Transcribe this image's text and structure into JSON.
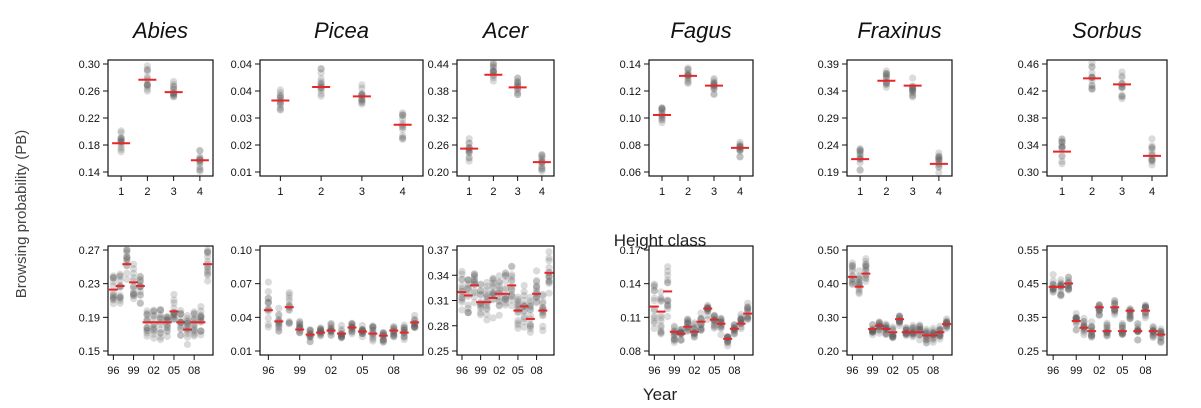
{
  "figure": {
    "ylabel": "Browsing probability (PB)",
    "xlabel_top": "Height class",
    "xlabel_bottom": "Year"
  },
  "colors": {
    "point": "#5a5a5a",
    "median": "#e8262a",
    "frame": "#111111"
  },
  "chart_data": [
    {
      "type": "scatter",
      "row": "height",
      "title": "Abies",
      "x": [
        1,
        2,
        3,
        4
      ],
      "medians": [
        0.183,
        0.276,
        0.258,
        0.158
      ],
      "spread": [
        0.025,
        0.025,
        0.023,
        0.018
      ],
      "yticks": [
        "0.30",
        "0.26",
        "0.22",
        "0.18",
        "0.14"
      ],
      "ylim": [
        0.135,
        0.305
      ],
      "xticks": [
        "1",
        "2",
        "3",
        "4"
      ]
    },
    {
      "type": "scatter",
      "row": "height",
      "title": "Picea",
      "x": [
        1,
        2,
        3,
        4
      ],
      "medians": [
        0.036,
        0.041,
        0.0375,
        0.027
      ],
      "spread": [
        0.007,
        0.007,
        0.006,
        0.006
      ],
      "yticks": [
        "0.04",
        "0.04",
        "0.03",
        "0.02",
        "0.01"
      ],
      "ylim": [
        0.008,
        0.051
      ],
      "xticks": [
        "1",
        "2",
        "3",
        "4"
      ]
    },
    {
      "type": "scatter",
      "row": "height",
      "title": "Acer",
      "x": [
        1,
        2,
        3,
        4
      ],
      "medians": [
        0.26,
        0.435,
        0.405,
        0.228
      ],
      "spread": [
        0.03,
        0.03,
        0.03,
        0.025
      ],
      "yticks": [
        "0.44",
        "0.38",
        "0.32",
        "0.26",
        "0.20"
      ],
      "ylim": [
        0.195,
        0.47
      ],
      "xticks": [
        "1",
        "2",
        "3",
        "4"
      ]
    },
    {
      "type": "scatter",
      "row": "height",
      "title": "Fagus",
      "x": [
        1,
        2,
        3,
        4
      ],
      "medians": [
        0.107,
        0.139,
        0.131,
        0.08
      ],
      "spread": [
        0.012,
        0.008,
        0.008,
        0.009
      ],
      "yticks": [
        "0.14",
        "0.12",
        "0.10",
        "0.08",
        "0.06"
      ],
      "ylim": [
        0.057,
        0.152
      ],
      "xticks": [
        "1",
        "2",
        "3",
        "4"
      ]
    },
    {
      "type": "scatter",
      "row": "height",
      "title": "Fraxinus",
      "x": [
        1,
        2,
        3,
        4
      ],
      "medians": [
        0.22,
        0.382,
        0.372,
        0.21
      ],
      "spread": [
        0.03,
        0.03,
        0.03,
        0.03
      ],
      "yticks": [
        "0.39",
        "0.34",
        "0.29",
        "0.24",
        "0.19"
      ],
      "ylim": [
        0.185,
        0.425
      ],
      "xticks": [
        "1",
        "2",
        "3",
        "4"
      ]
    },
    {
      "type": "scatter",
      "row": "height",
      "title": "Sorbus",
      "x": [
        1,
        2,
        3,
        4
      ],
      "medians": [
        0.335,
        0.455,
        0.445,
        0.328
      ],
      "spread": [
        0.03,
        0.03,
        0.03,
        0.03
      ],
      "yticks": [
        "0.46",
        "0.42",
        "0.38",
        "0.34",
        "0.30"
      ],
      "ylim": [
        0.295,
        0.485
      ],
      "xticks": [
        "1",
        "2",
        "3",
        "4"
      ]
    },
    {
      "type": "scatter",
      "row": "year",
      "x": [
        1996,
        1997,
        1998,
        1999,
        2000,
        2001,
        2002,
        2003,
        2004,
        2005,
        2006,
        2007,
        2008,
        2009,
        2010
      ],
      "medians": [
        0.235,
        0.24,
        0.27,
        0.245,
        0.24,
        0.19,
        0.19,
        0.19,
        0.19,
        0.205,
        0.19,
        0.18,
        0.19,
        0.19,
        0.27
      ],
      "spread": [
        0.03,
        0.03,
        0.03,
        0.03,
        0.03,
        0.025,
        0.025,
        0.025,
        0.025,
        0.03,
        0.025,
        0.025,
        0.025,
        0.025,
        0.03
      ],
      "yticks": [
        "0.27",
        "0.23",
        "0.19",
        "0.15"
      ],
      "ylim": [
        0.145,
        0.295
      ],
      "xticks": [
        "96",
        "99",
        "02",
        "05",
        "08"
      ],
      "xtick_values": [
        1996,
        1999,
        2002,
        2005,
        2008
      ],
      "xlim": [
        1995.2,
        2010.8
      ]
    },
    {
      "type": "scatter",
      "row": "year",
      "x": [
        1996,
        1997,
        1998,
        1999,
        2000,
        2001,
        2002,
        2003,
        2004,
        2005,
        2006,
        2007,
        2008,
        2009,
        2010
      ],
      "medians": [
        0.049,
        0.038,
        0.052,
        0.03,
        0.025,
        0.027,
        0.029,
        0.026,
        0.032,
        0.028,
        0.026,
        0.024,
        0.029,
        0.027,
        0.037
      ],
      "spread": [
        0.03,
        0.02,
        0.035,
        0.01,
        0.008,
        0.008,
        0.008,
        0.008,
        0.008,
        0.008,
        0.008,
        0.008,
        0.008,
        0.008,
        0.008
      ],
      "yticks": [
        "0.10",
        "0.07",
        "0.04",
        "0.01"
      ],
      "ylim": [
        0.005,
        0.112
      ],
      "xticks": [
        "96",
        "99",
        "02",
        "05",
        "08"
      ],
      "xtick_values": [
        1996,
        1999,
        2002,
        2005,
        2008
      ],
      "xlim": [
        1995.2,
        2010.8
      ]
    },
    {
      "type": "scatter",
      "row": "year",
      "x": [
        1996,
        1997,
        1998,
        1999,
        2000,
        2001,
        2002,
        2003,
        2004,
        2005,
        2006,
        2007,
        2008,
        2009,
        2010
      ],
      "medians": [
        0.322,
        0.318,
        0.33,
        0.31,
        0.31,
        0.315,
        0.32,
        0.32,
        0.33,
        0.3,
        0.305,
        0.29,
        0.32,
        0.3,
        0.345
      ],
      "spread": [
        0.03,
        0.03,
        0.03,
        0.03,
        0.03,
        0.03,
        0.03,
        0.03,
        0.03,
        0.03,
        0.03,
        0.03,
        0.03,
        0.03,
        0.03
      ],
      "yticks": [
        "0.37",
        "0.34",
        "0.31",
        "0.28",
        "0.25"
      ],
      "ylim": [
        0.247,
        0.377
      ],
      "xticks": [
        "96",
        "99",
        "02",
        "05",
        "08"
      ],
      "xtick_values": [
        1996,
        1999,
        2002,
        2005,
        2008
      ],
      "xlim": [
        1995.2,
        2010.8
      ]
    },
    {
      "type": "scatter",
      "row": "year",
      "x": [
        1996,
        1997,
        1998,
        1999,
        2000,
        2001,
        2002,
        2003,
        2004,
        2005,
        2006,
        2007,
        2008,
        2009,
        2010
      ],
      "medians": [
        0.125,
        0.12,
        0.14,
        0.1,
        0.098,
        0.105,
        0.1,
        0.11,
        0.123,
        0.112,
        0.108,
        0.093,
        0.103,
        0.108,
        0.118
      ],
      "spread": [
        0.035,
        0.03,
        0.035,
        0.012,
        0.01,
        0.01,
        0.01,
        0.012,
        0.012,
        0.012,
        0.012,
        0.01,
        0.01,
        0.01,
        0.012
      ],
      "yticks": [
        "0.17",
        "0.14",
        "0.11",
        "0.08"
      ],
      "ylim": [
        0.077,
        0.185
      ],
      "xticks": [
        "96",
        "99",
        "02",
        "05",
        "08"
      ],
      "xtick_values": [
        1996,
        1999,
        2002,
        2005,
        2008
      ],
      "xlim": [
        1995.2,
        2010.8
      ]
    },
    {
      "type": "scatter",
      "row": "year",
      "x": [
        1996,
        1997,
        1998,
        1999,
        2000,
        2001,
        2002,
        2003,
        2004,
        2005,
        2006,
        2007,
        2008,
        2009,
        2010
      ],
      "medians": [
        0.43,
        0.4,
        0.44,
        0.27,
        0.28,
        0.27,
        0.26,
        0.3,
        0.26,
        0.26,
        0.26,
        0.25,
        0.25,
        0.26,
        0.285
      ],
      "spread": [
        0.06,
        0.06,
        0.06,
        0.025,
        0.025,
        0.025,
        0.025,
        0.025,
        0.025,
        0.025,
        0.025,
        0.025,
        0.025,
        0.025,
        0.025
      ],
      "yticks": [
        "0.50",
        "0.40",
        "0.30",
        "0.20"
      ],
      "ylim": [
        0.19,
        0.525
      ],
      "xticks": [
        "96",
        "99",
        "02",
        "05",
        "08"
      ],
      "xtick_values": [
        1996,
        1999,
        2002,
        2005,
        2008
      ],
      "xlim": [
        1995.2,
        2010.8
      ]
    },
    {
      "type": "scatter",
      "row": "year",
      "x": [
        1996,
        1997,
        1998,
        1999,
        2000,
        2001,
        2002,
        2003,
        2004,
        2005,
        2006,
        2007,
        2008,
        2009,
        2010
      ],
      "medians": [
        0.44,
        0.44,
        0.45,
        0.34,
        0.32,
        0.31,
        0.38,
        0.31,
        0.38,
        0.31,
        0.37,
        0.31,
        0.37,
        0.31,
        0.3
      ],
      "spread": [
        0.04,
        0.04,
        0.04,
        0.03,
        0.03,
        0.03,
        0.03,
        0.03,
        0.03,
        0.03,
        0.03,
        0.03,
        0.03,
        0.03,
        0.03
      ],
      "yticks": [
        "0.55",
        "0.45",
        "0.35",
        "0.25"
      ],
      "ylim": [
        0.24,
        0.56
      ],
      "xticks": [
        "96",
        "99",
        "02",
        "05",
        "08"
      ],
      "xtick_values": [
        1996,
        1999,
        2002,
        2005,
        2008
      ],
      "xlim": [
        1995.2,
        2010.8
      ]
    }
  ]
}
